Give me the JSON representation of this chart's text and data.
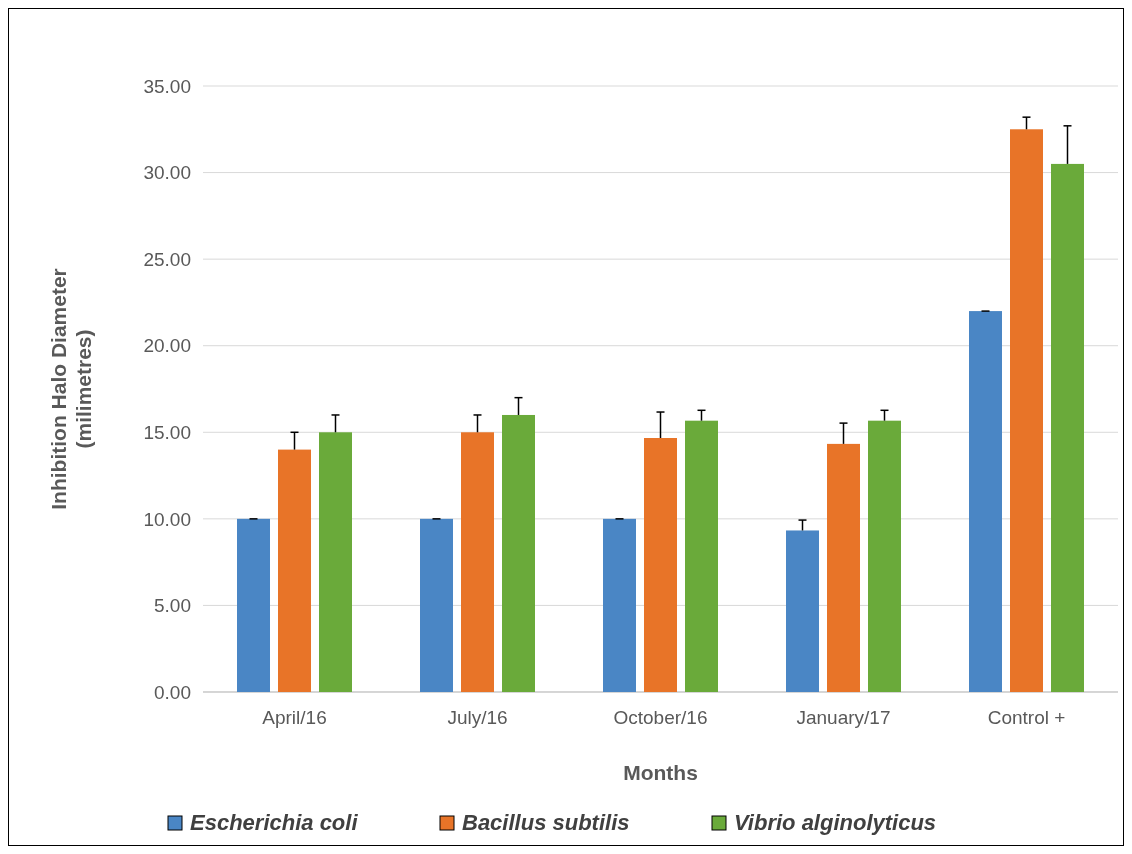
{
  "chart_data": {
    "type": "bar",
    "xlabel": "Months",
    "ylabel": "Inhibition Halo Diameter (milimetres)",
    "categories": [
      "April/16",
      "July/16",
      "October/16",
      "January/17",
      "Control +"
    ],
    "series": [
      {
        "name": "Escherichia coli",
        "color": "#4a86c5",
        "values": [
          10,
          10,
          10,
          9.33,
          22
        ],
        "errors": [
          0,
          0,
          0,
          0.6,
          0
        ]
      },
      {
        "name": "Bacillus subtilis",
        "color": "#e87428",
        "values": [
          14,
          15,
          14.67,
          14.33,
          32.5
        ],
        "errors": [
          1,
          1,
          1.5,
          1.2,
          0.7
        ]
      },
      {
        "name": "Vibrio alginolyticus",
        "color": "#6aaa3a",
        "values": [
          15,
          16,
          15.67,
          15.67,
          30.5
        ],
        "errors": [
          1,
          1,
          0.6,
          0.6,
          2.2
        ]
      }
    ],
    "ylim": [
      0,
      35
    ],
    "yticks": [
      {
        "value": 0,
        "label": "0.00"
      },
      {
        "value": 5,
        "label": "5.00"
      },
      {
        "value": 10,
        "label": "10.00"
      },
      {
        "value": 15,
        "label": "15.00"
      },
      {
        "value": 20,
        "label": "20.00"
      },
      {
        "value": 25,
        "label": "25.00"
      },
      {
        "value": 30,
        "label": "30.00"
      },
      {
        "value": 35,
        "label": "35.00"
      }
    ],
    "grid": "y",
    "legend": "bottom"
  }
}
